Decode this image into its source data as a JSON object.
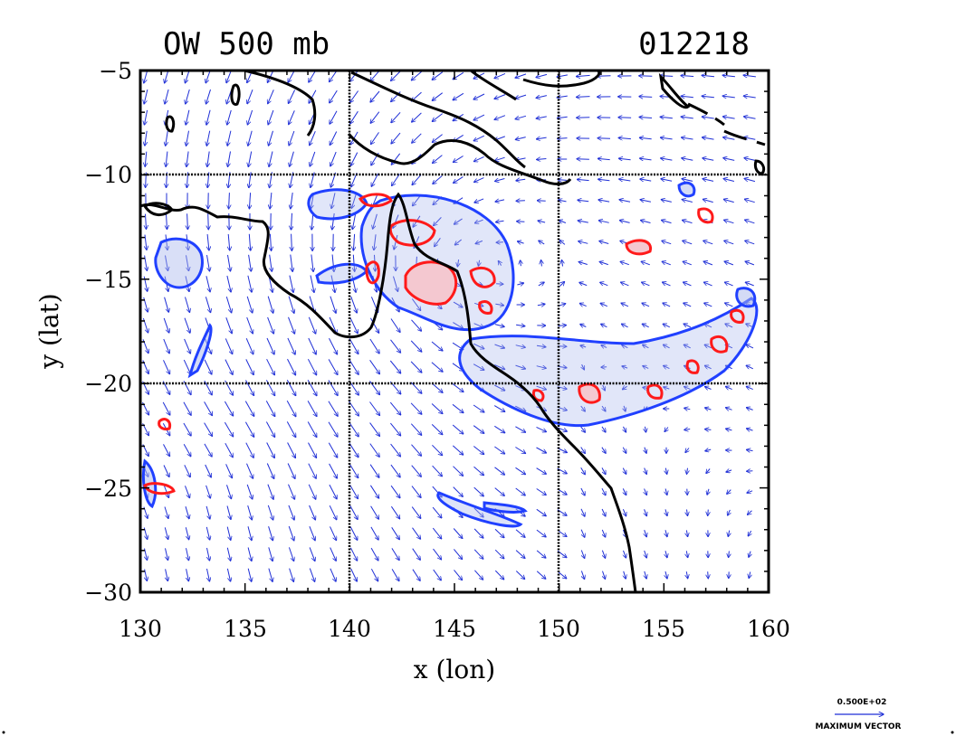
{
  "title_left": "OW 500 mb",
  "title_right": "012218",
  "xlabel": "x (lon)",
  "ylabel": "y (lat)",
  "x_ticks": [
    "130",
    "135",
    "140",
    "145",
    "150",
    "155",
    "160"
  ],
  "y_ticks": [
    "−5",
    "−10",
    "−15",
    "−20",
    "−25",
    "−30"
  ],
  "vector_scale_value": "0.500E+02",
  "vector_scale_label": "MAXIMUM VECTOR",
  "map": {
    "lon_range": [
      130,
      160
    ],
    "lat_range": [
      -30,
      -5
    ],
    "gridlines_lon": [
      140,
      150
    ],
    "gridlines_lat": [
      -10,
      -20
    ],
    "colors": {
      "vectors": "#1f2fd6",
      "ow_negative": "#2040ff",
      "ow_negative_fill": "#aab8ee",
      "ow_positive": "#ff1a1a",
      "ow_positive_fill": "#f4c8d0",
      "coast": "#000000"
    }
  }
}
